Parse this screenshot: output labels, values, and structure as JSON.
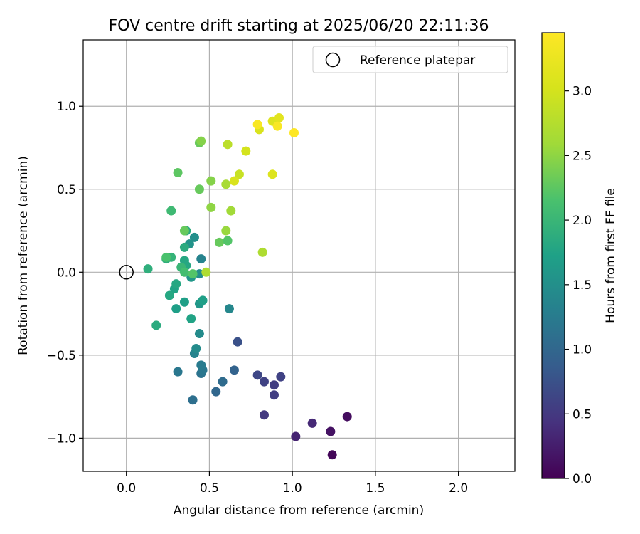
{
  "chart_data": {
    "type": "scatter",
    "title": "FOV centre drift starting at 2025/06/20 22:11:36",
    "xlabel": "Angular distance from reference (arcmin)",
    "ylabel": "Rotation from reference (arcmin)",
    "xlim": [
      -0.26,
      2.34
    ],
    "ylim": [
      -1.2,
      1.4
    ],
    "xticks": [
      0.0,
      0.5,
      1.0,
      1.5,
      2.0
    ],
    "xtick_labels": [
      "0.0",
      "0.5",
      "1.0",
      "1.5",
      "2.0"
    ],
    "yticks": [
      -1.0,
      -0.5,
      0.0,
      0.5,
      1.0
    ],
    "ytick_labels": [
      "−1.0",
      "−0.5",
      "0.0",
      "0.5",
      "1.0"
    ],
    "grid": true,
    "legend": {
      "placement": "top-right",
      "entries": [
        "Reference platepar"
      ]
    },
    "reference_point": {
      "x": 0.0,
      "y": 0.0
    },
    "colorbar": {
      "label": "Hours from first FF file",
      "colormap": "viridis",
      "range": [
        0.0,
        3.45
      ],
      "ticks": [
        0.0,
        0.5,
        1.0,
        1.5,
        2.0,
        2.5,
        3.0
      ],
      "tick_labels": [
        "0.0",
        "0.5",
        "1.0",
        "1.5",
        "2.0",
        "2.5",
        "3.0"
      ]
    },
    "points": [
      {
        "x": 1.24,
        "y": -1.1,
        "c": 0.05
      },
      {
        "x": 1.33,
        "y": -0.87,
        "c": 0.1
      },
      {
        "x": 1.23,
        "y": -0.96,
        "c": 0.15
      },
      {
        "x": 1.02,
        "y": -0.99,
        "c": 0.3
      },
      {
        "x": 1.12,
        "y": -0.91,
        "c": 0.35
      },
      {
        "x": 0.83,
        "y": -0.86,
        "c": 0.5
      },
      {
        "x": 0.89,
        "y": -0.74,
        "c": 0.55
      },
      {
        "x": 0.89,
        "y": -0.68,
        "c": 0.55
      },
      {
        "x": 0.93,
        "y": -0.63,
        "c": 0.6
      },
      {
        "x": 0.83,
        "y": -0.66,
        "c": 0.6
      },
      {
        "x": 0.79,
        "y": -0.62,
        "c": 0.65
      },
      {
        "x": 0.67,
        "y": -0.42,
        "c": 0.75
      },
      {
        "x": 0.65,
        "y": -0.59,
        "c": 0.95
      },
      {
        "x": 0.54,
        "y": -0.72,
        "c": 1.0
      },
      {
        "x": 0.58,
        "y": -0.66,
        "c": 1.05
      },
      {
        "x": 0.4,
        "y": -0.77,
        "c": 1.1
      },
      {
        "x": 0.31,
        "y": -0.6,
        "c": 1.2
      },
      {
        "x": 0.45,
        "y": -0.61,
        "c": 1.15
      },
      {
        "x": 0.46,
        "y": -0.59,
        "c": 1.2
      },
      {
        "x": 0.45,
        "y": -0.56,
        "c": 1.25
      },
      {
        "x": 0.41,
        "y": -0.49,
        "c": 1.35
      },
      {
        "x": 0.42,
        "y": -0.46,
        "c": 1.45
      },
      {
        "x": 0.44,
        "y": -0.37,
        "c": 1.45
      },
      {
        "x": 0.62,
        "y": -0.22,
        "c": 1.4
      },
      {
        "x": 0.45,
        "y": 0.08,
        "c": 1.35
      },
      {
        "x": 0.41,
        "y": 0.21,
        "c": 1.5
      },
      {
        "x": 0.44,
        "y": -0.01,
        "c": 1.5
      },
      {
        "x": 0.38,
        "y": 0.17,
        "c": 1.55
      },
      {
        "x": 0.39,
        "y": -0.03,
        "c": 1.6
      },
      {
        "x": 0.44,
        "y": -0.19,
        "c": 1.6
      },
      {
        "x": 0.46,
        "y": -0.17,
        "c": 1.7
      },
      {
        "x": 0.35,
        "y": -0.18,
        "c": 1.7
      },
      {
        "x": 0.3,
        "y": -0.22,
        "c": 1.7
      },
      {
        "x": 0.39,
        "y": -0.28,
        "c": 1.75
      },
      {
        "x": 0.29,
        "y": -0.1,
        "c": 1.75
      },
      {
        "x": 0.3,
        "y": -0.07,
        "c": 1.8
      },
      {
        "x": 0.26,
        "y": -0.14,
        "c": 1.8
      },
      {
        "x": 0.36,
        "y": 0.04,
        "c": 1.8
      },
      {
        "x": 0.35,
        "y": 0.07,
        "c": 1.8
      },
      {
        "x": 0.35,
        "y": 0.15,
        "c": 1.85
      },
      {
        "x": 0.36,
        "y": 0.25,
        "c": 1.85
      },
      {
        "x": 0.18,
        "y": -0.32,
        "c": 1.85
      },
      {
        "x": 0.13,
        "y": 0.02,
        "c": 1.9
      },
      {
        "x": 0.24,
        "y": 0.08,
        "c": 1.9
      },
      {
        "x": 0.27,
        "y": 0.09,
        "c": 1.95
      },
      {
        "x": 0.33,
        "y": 0.03,
        "c": 2.0
      },
      {
        "x": 0.27,
        "y": 0.37,
        "c": 2.05
      },
      {
        "x": 0.35,
        "y": 0.0,
        "c": 2.1
      },
      {
        "x": 0.24,
        "y": 0.09,
        "c": 2.15
      },
      {
        "x": 0.4,
        "y": -0.01,
        "c": 2.2
      },
      {
        "x": 0.31,
        "y": 0.6,
        "c": 2.25
      },
      {
        "x": 0.35,
        "y": 0.25,
        "c": 2.3
      },
      {
        "x": 0.44,
        "y": 0.78,
        "c": 2.3
      },
      {
        "x": 0.44,
        "y": 0.5,
        "c": 2.3
      },
      {
        "x": 0.56,
        "y": 0.18,
        "c": 2.3
      },
      {
        "x": 0.61,
        "y": 0.19,
        "c": 2.2
      },
      {
        "x": 0.45,
        "y": 0.79,
        "c": 2.45
      },
      {
        "x": 0.51,
        "y": 0.55,
        "c": 2.45
      },
      {
        "x": 0.51,
        "y": 0.39,
        "c": 2.5
      },
      {
        "x": 0.6,
        "y": 0.25,
        "c": 2.55
      },
      {
        "x": 0.63,
        "y": 0.37,
        "c": 2.6
      },
      {
        "x": 0.6,
        "y": 0.53,
        "c": 2.65
      },
      {
        "x": 0.48,
        "y": 0.0,
        "c": 2.7
      },
      {
        "x": 0.82,
        "y": 0.12,
        "c": 2.7
      },
      {
        "x": 0.61,
        "y": 0.77,
        "c": 2.8
      },
      {
        "x": 0.68,
        "y": 0.59,
        "c": 2.9
      },
      {
        "x": 0.72,
        "y": 0.73,
        "c": 3.0
      },
      {
        "x": 0.65,
        "y": 0.55,
        "c": 3.05
      },
      {
        "x": 0.8,
        "y": 0.86,
        "c": 3.05
      },
      {
        "x": 0.88,
        "y": 0.59,
        "c": 3.1
      },
      {
        "x": 0.88,
        "y": 0.91,
        "c": 3.1
      },
      {
        "x": 0.92,
        "y": 0.93,
        "c": 3.15
      },
      {
        "x": 0.79,
        "y": 0.89,
        "c": 3.4
      },
      {
        "x": 0.91,
        "y": 0.88,
        "c": 3.4
      },
      {
        "x": 1.01,
        "y": 0.84,
        "c": 3.45
      }
    ]
  }
}
